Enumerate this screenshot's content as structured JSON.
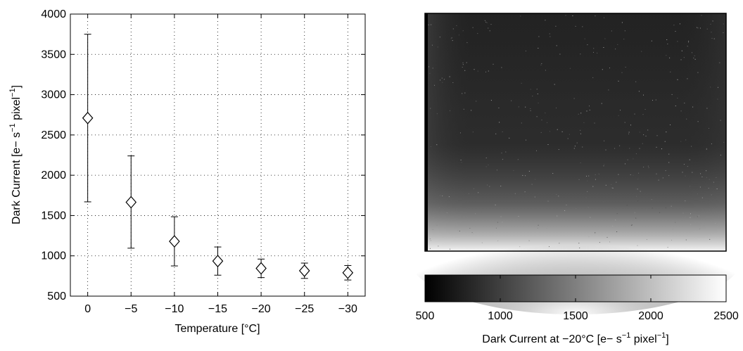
{
  "chart_data": [
    {
      "type": "scatter",
      "marker": "diamond",
      "error_bars": true,
      "xlabel": "Temperature [°C]",
      "ylabel_parts": [
        "Dark Current [e− s",
        "−1",
        " pixel",
        "−1",
        "]"
      ],
      "xlim": [
        2,
        -32
      ],
      "ylim": [
        500,
        4000
      ],
      "xticks": [
        0,
        -5,
        -10,
        -15,
        -20,
        -25,
        -30
      ],
      "xtick_labels": [
        "0",
        "−5",
        "−10",
        "−15",
        "−20",
        "−25",
        "−30"
      ],
      "yticks": [
        500,
        1000,
        1500,
        2000,
        2500,
        3000,
        3500,
        4000
      ],
      "ytick_labels": [
        "500",
        "1000",
        "1500",
        "2000",
        "2500",
        "3000",
        "3500",
        "4000"
      ],
      "grid": true,
      "points": [
        {
          "x": 0,
          "y": 2710,
          "ylow": 1670,
          "yhigh": 3750
        },
        {
          "x": -5,
          "y": 1665,
          "ylow": 1095,
          "yhigh": 2240
        },
        {
          "x": -10,
          "y": 1180,
          "ylow": 875,
          "yhigh": 1485
        },
        {
          "x": -15,
          "y": 935,
          "ylow": 760,
          "yhigh": 1110
        },
        {
          "x": -20,
          "y": 845,
          "ylow": 730,
          "yhigh": 960
        },
        {
          "x": -25,
          "y": 815,
          "ylow": 720,
          "yhigh": 910
        },
        {
          "x": -30,
          "y": 790,
          "ylow": 700,
          "yhigh": 880
        }
      ]
    },
    {
      "type": "heatmap",
      "colormap": "gray",
      "color_range": [
        500,
        2500
      ],
      "colorbar_ticks": [
        500,
        1000,
        1500,
        2000,
        2500
      ],
      "colorbar_tick_labels": [
        "500",
        "1000",
        "1500",
        "2000",
        "2500"
      ],
      "colorbar_label_parts": [
        "Dark Current at −20°C [e− s",
        "−1",
        " pixel",
        "−1",
        "]"
      ]
    }
  ]
}
